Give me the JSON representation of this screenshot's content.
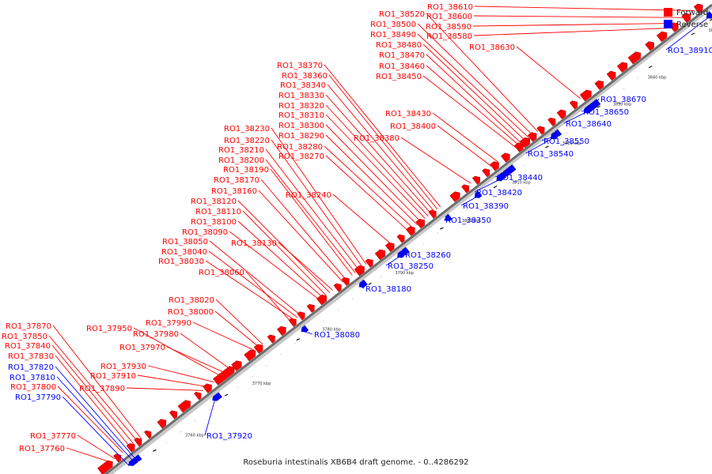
{
  "caption": "Roseburia intestinalis XB6B4 draft genome. - 0..4286292",
  "legend": [
    {
      "label": "Forward",
      "color": "#ff0000"
    },
    {
      "label": "Reverse",
      "color": "#0000ff"
    }
  ],
  "ticks": [
    "3760 kbp",
    "3770 kbp",
    "3780 kbp",
    "3790 kbp",
    "3800 kbp",
    "3810 kbp",
    "3820 kbp",
    "3830 kbp",
    "3840 kbp",
    "3850 kbp",
    "3860 kbp"
  ],
  "labels": [
    {
      "text": "RO1_38610",
      "strand": "forward",
      "pos": 0.977
    },
    {
      "text": "RO1_38600",
      "strand": "forward",
      "pos": 0.962
    },
    {
      "text": "RO1_38590",
      "strand": "forward",
      "pos": 0.95
    },
    {
      "text": "RO1_38580",
      "strand": "forward",
      "pos": 0.94
    },
    {
      "text": "RO1_38520",
      "strand": "forward",
      "pos": 0.72
    },
    {
      "text": "RO1_38500",
      "strand": "forward",
      "pos": 0.712
    },
    {
      "text": "RO1_38490",
      "strand": "forward",
      "pos": 0.706
    },
    {
      "text": "RO1_38480",
      "strand": "forward",
      "pos": 0.7
    },
    {
      "text": "RO1_38470",
      "strand": "forward",
      "pos": 0.694
    },
    {
      "text": "RO1_38460",
      "strand": "forward",
      "pos": 0.69
    },
    {
      "text": "RO1_38450",
      "strand": "forward",
      "pos": 0.685
    },
    {
      "text": "RO1_38630",
      "strand": "forward",
      "pos": 0.79
    },
    {
      "text": "RO1_38430",
      "strand": "forward",
      "pos": 0.655
    },
    {
      "text": "RO1_38400",
      "strand": "forward",
      "pos": 0.645
    },
    {
      "text": "RO1_38380",
      "strand": "forward",
      "pos": 0.61
    },
    {
      "text": "RO1_38370",
      "strand": "forward",
      "pos": 0.56
    },
    {
      "text": "RO1_38360",
      "strand": "forward",
      "pos": 0.555
    },
    {
      "text": "RO1_38340",
      "strand": "forward",
      "pos": 0.55
    },
    {
      "text": "RO1_38330",
      "strand": "forward",
      "pos": 0.545
    },
    {
      "text": "RO1_38320",
      "strand": "forward",
      "pos": 0.54
    },
    {
      "text": "RO1_38310",
      "strand": "forward",
      "pos": 0.535
    },
    {
      "text": "RO1_38300",
      "strand": "forward",
      "pos": 0.528
    },
    {
      "text": "RO1_38290",
      "strand": "forward",
      "pos": 0.522
    },
    {
      "text": "RO1_38280",
      "strand": "forward",
      "pos": 0.515
    },
    {
      "text": "RO1_38270",
      "strand": "forward",
      "pos": 0.508
    },
    {
      "text": "RO1_38240",
      "strand": "forward",
      "pos": 0.48
    },
    {
      "text": "RO1_38230",
      "strand": "forward",
      "pos": 0.438
    },
    {
      "text": "RO1_38220",
      "strand": "forward",
      "pos": 0.432
    },
    {
      "text": "RO1_38210",
      "strand": "forward",
      "pos": 0.426
    },
    {
      "text": "RO1_38200",
      "strand": "forward",
      "pos": 0.42
    },
    {
      "text": "RO1_38190",
      "strand": "forward",
      "pos": 0.415
    },
    {
      "text": "RO1_38170",
      "strand": "forward",
      "pos": 0.405
    },
    {
      "text": "RO1_38160",
      "strand": "forward",
      "pos": 0.4
    },
    {
      "text": "RO1_38130",
      "strand": "forward",
      "pos": 0.383
    },
    {
      "text": "RO1_38120",
      "strand": "forward",
      "pos": 0.378
    },
    {
      "text": "RO1_38110",
      "strand": "forward",
      "pos": 0.372
    },
    {
      "text": "RO1_38100",
      "strand": "forward",
      "pos": 0.367
    },
    {
      "text": "RO1_38090",
      "strand": "forward",
      "pos": 0.362
    },
    {
      "text": "RO1_38060",
      "strand": "forward",
      "pos": 0.315
    },
    {
      "text": "RO1_38050",
      "strand": "forward",
      "pos": 0.33
    },
    {
      "text": "RO1_38040",
      "strand": "forward",
      "pos": 0.325
    },
    {
      "text": "RO1_38030",
      "strand": "forward",
      "pos": 0.32
    },
    {
      "text": "RO1_38020",
      "strand": "forward",
      "pos": 0.268
    },
    {
      "text": "RO1_38000",
      "strand": "forward",
      "pos": 0.262
    },
    {
      "text": "RO1_37990",
      "strand": "forward",
      "pos": 0.255
    },
    {
      "text": "RO1_37980",
      "strand": "forward",
      "pos": 0.215
    },
    {
      "text": "RO1_37970",
      "strand": "forward",
      "pos": 0.207
    },
    {
      "text": "RO1_37950",
      "strand": "forward",
      "pos": 0.2
    },
    {
      "text": "RO1_37930",
      "strand": "forward",
      "pos": 0.188
    },
    {
      "text": "RO1_37910",
      "strand": "forward",
      "pos": 0.178
    },
    {
      "text": "RO1_37890",
      "strand": "forward",
      "pos": 0.17
    },
    {
      "text": "RO1_37870",
      "strand": "forward",
      "pos": 0.068
    },
    {
      "text": "RO1_37850",
      "strand": "forward",
      "pos": 0.062
    },
    {
      "text": "RO1_37840",
      "strand": "forward",
      "pos": 0.056
    },
    {
      "text": "RO1_37830",
      "strand": "forward",
      "pos": 0.05
    },
    {
      "text": "RO1_37820",
      "strand": "reverse",
      "pos": 0.046
    },
    {
      "text": "RO1_37810",
      "strand": "reverse",
      "pos": 0.042
    },
    {
      "text": "RO1_37800",
      "strand": "forward",
      "pos": 0.038
    },
    {
      "text": "RO1_37790",
      "strand": "reverse",
      "pos": 0.034
    },
    {
      "text": "RO1_37770",
      "strand": "forward",
      "pos": 0.025
    },
    {
      "text": "RO1_37760",
      "strand": "forward",
      "pos": 0.018
    },
    {
      "text": "RO1_38910",
      "strand": "reverse",
      "pos": 0.985
    },
    {
      "text": "RO1_38670",
      "strand": "reverse",
      "pos": 0.8
    },
    {
      "text": "RO1_38650",
      "strand": "reverse",
      "pos": 0.792
    },
    {
      "text": "RO1_38640",
      "strand": "reverse",
      "pos": 0.785
    },
    {
      "text": "RO1_38550",
      "strand": "reverse",
      "pos": 0.735
    },
    {
      "text": "RO1_38540",
      "strand": "reverse",
      "pos": 0.728
    },
    {
      "text": "RO1_38440",
      "strand": "reverse",
      "pos": 0.655
    },
    {
      "text": "RO1_38420",
      "strand": "reverse",
      "pos": 0.64
    },
    {
      "text": "RO1_38390",
      "strand": "reverse",
      "pos": 0.605
    },
    {
      "text": "RO1_38350",
      "strand": "reverse",
      "pos": 0.555
    },
    {
      "text": "RO1_38260",
      "strand": "reverse",
      "pos": 0.485
    },
    {
      "text": "RO1_38250",
      "strand": "reverse",
      "pos": 0.478
    },
    {
      "text": "RO1_38180",
      "strand": "reverse",
      "pos": 0.415
    },
    {
      "text": "RO1_38080",
      "strand": "reverse",
      "pos": 0.32
    },
    {
      "text": "RO1_37920",
      "strand": "reverse",
      "pos": 0.175
    }
  ]
}
